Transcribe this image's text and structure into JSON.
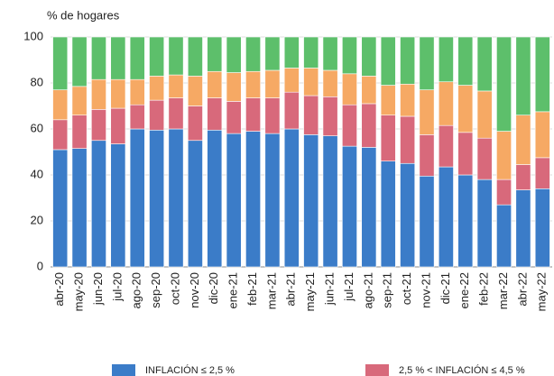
{
  "chart_data": {
    "type": "stacked_bar",
    "ylabel": "% de hogares",
    "categories": [
      "abr-20",
      "may-20",
      "jun-20",
      "jul-20",
      "ago-20",
      "sep-20",
      "oct-20",
      "nov-20",
      "dic-20",
      "ene-21",
      "feb-21",
      "mar-21",
      "abr-21",
      "may-21",
      "jun-21",
      "jul-21",
      "ago-21",
      "sep-21",
      "oct-21",
      "nov-21",
      "dic-21",
      "ene-22",
      "feb-22",
      "mar-22",
      "abr-22",
      "may-22"
    ],
    "series": [
      {
        "name": "INFLACIÓN ≤ 2,5 %",
        "color": "#3b7cc8",
        "values": [
          51,
          51.5,
          55,
          53.5,
          60,
          59.5,
          60,
          55,
          59.5,
          58,
          59,
          58,
          60,
          57.5,
          57,
          52.5,
          52,
          46,
          45,
          39.5,
          43.5,
          40,
          38,
          27,
          33.5,
          34
        ]
      },
      {
        "name": "2,5 % < INFLACIÓN ≤ 4,5 %",
        "color": "#d8697b",
        "values": [
          13,
          14.5,
          13.5,
          15.5,
          10.5,
          13,
          13.5,
          15,
          14,
          14,
          14.5,
          15.5,
          16,
          17,
          17,
          18,
          19,
          20,
          20.5,
          18,
          18,
          18.5,
          18,
          11,
          11,
          13.5
        ]
      },
      {
        "color": "#f6a964",
        "values": [
          13,
          12.5,
          13,
          12.5,
          11,
          10.5,
          10,
          13,
          11.5,
          12.5,
          11.5,
          12,
          10.5,
          12,
          11.5,
          13.5,
          12,
          13,
          14,
          19.5,
          19,
          20.5,
          20.5,
          21,
          21.5,
          20
        ]
      },
      {
        "color": "#5dbf6b",
        "values": [
          23,
          21.5,
          18.5,
          18.5,
          18.5,
          17,
          16.5,
          17,
          15,
          15.5,
          15,
          14.5,
          13.5,
          13.5,
          14.5,
          16,
          17,
          21,
          20.5,
          23,
          19.5,
          21,
          23.5,
          41,
          34,
          32.5
        ]
      }
    ],
    "ylim": [
      0,
      100
    ],
    "yticks": [
      0,
      20,
      40,
      60,
      80,
      100
    ],
    "grid": true
  }
}
